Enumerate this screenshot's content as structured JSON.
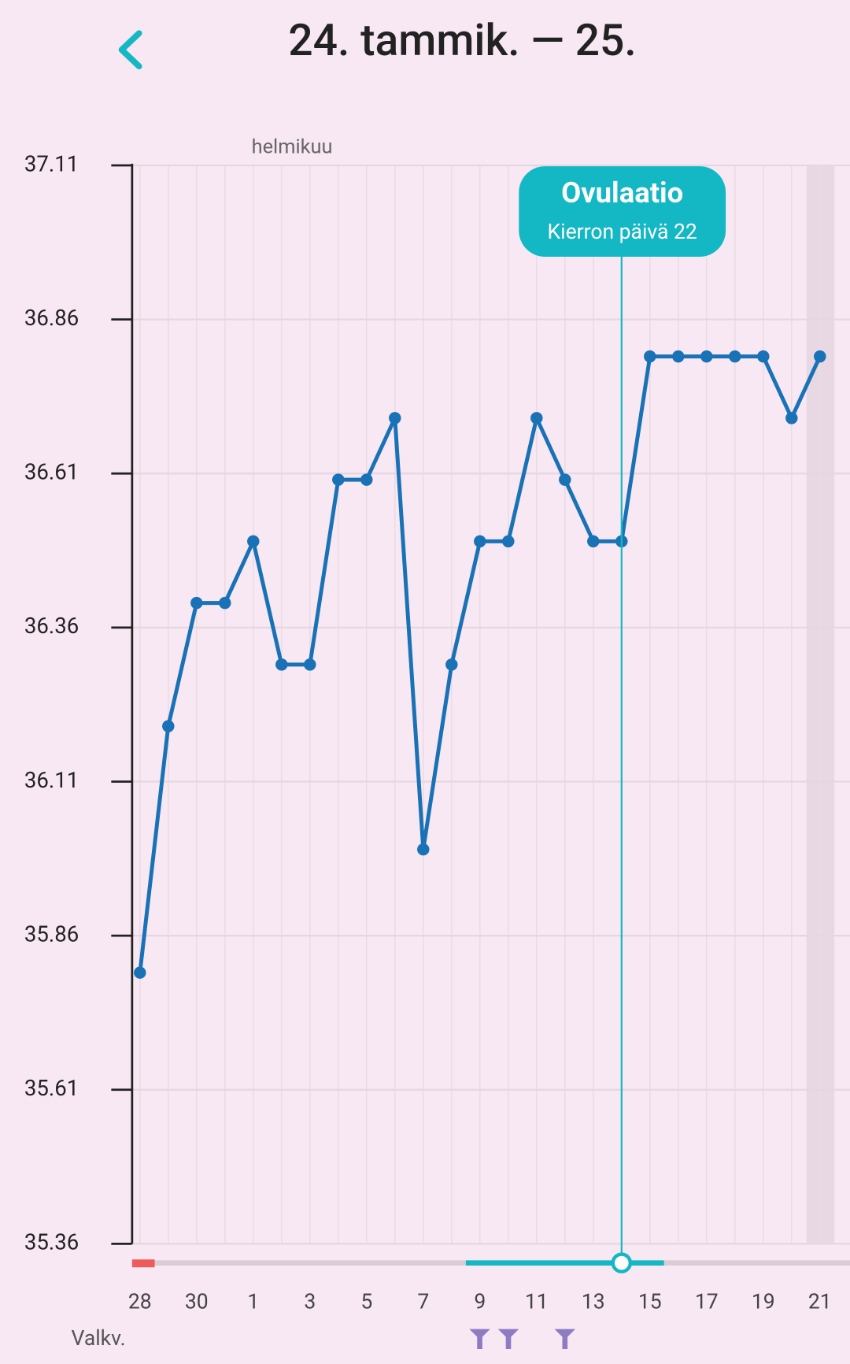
{
  "header": {
    "title": "24. tammik. — 25."
  },
  "chart_data": {
    "type": "line",
    "month_label": "helmikuu",
    "categories": [
      "28",
      null,
      "30",
      null,
      "1",
      null,
      "3",
      null,
      "5",
      null,
      "7",
      null,
      "9",
      null,
      "11",
      null,
      "13",
      null,
      "15",
      null,
      "17",
      null,
      "19",
      null,
      "21"
    ],
    "series": [
      {
        "color": "#1a72b6",
        "values": [
          35.8,
          36.2,
          36.4,
          36.4,
          36.5,
          36.3,
          36.3,
          36.6,
          36.6,
          36.7,
          36.0,
          36.3,
          36.5,
          36.5,
          36.7,
          36.6,
          36.5,
          36.5,
          36.8,
          36.8,
          36.8,
          36.8,
          36.8,
          36.7,
          36.8
        ]
      }
    ],
    "ylim": [
      35.36,
      37.11
    ],
    "yticks": [
      35.36,
      35.61,
      35.86,
      36.11,
      36.36,
      36.61,
      36.86,
      37.11
    ],
    "grid": true,
    "annotation": {
      "title": "Ovulaatio",
      "subtitle": "Kierron päivä 22"
    },
    "row_label": "Valkv."
  }
}
